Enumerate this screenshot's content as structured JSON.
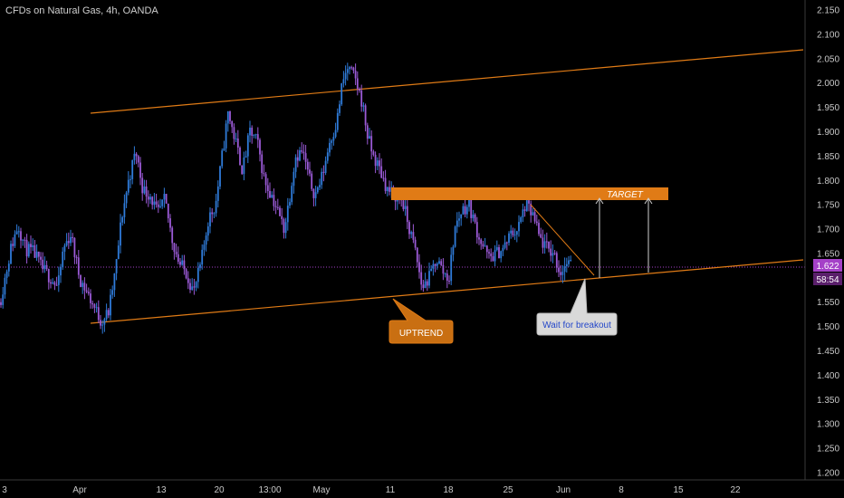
{
  "header": {
    "title": "CFDs on Natural Gas, 4h, OANDA"
  },
  "price_axis": {
    "ticks": [
      "2.150",
      "2.100",
      "2.050",
      "2.000",
      "1.950",
      "1.900",
      "1.850",
      "1.800",
      "1.750",
      "1.700",
      "1.650",
      "1.600",
      "1.550",
      "1.500",
      "1.450",
      "1.400",
      "1.350",
      "1.300",
      "1.250",
      "1.200"
    ],
    "last_price": "1.622",
    "countdown": "58:54"
  },
  "time_axis": {
    "ticks": [
      "3",
      "Apr",
      "13",
      "20",
      "13:00",
      "May",
      "11",
      "18",
      "25",
      "Jun",
      "8",
      "15",
      "22"
    ]
  },
  "annotations": {
    "target_label": "TARGET",
    "uptrend_label": "UPTREND",
    "breakout_label": "Wait for breakout"
  },
  "colors": {
    "background": "#000000",
    "candle_up": "#2f7bd9",
    "candle_down": "#9b5ad6",
    "channel": "#e07b16",
    "target_zone": "#e07b16",
    "last_price_tag": "#a541c8",
    "countdown_tag": "#5a1f6b",
    "callout_bg": "#d9d9d9",
    "callout_text": "#2447c9"
  },
  "chart_data": {
    "type": "candlestick",
    "symbol": "CFDs on Natural Gas",
    "timeframe": "4h",
    "source": "OANDA",
    "ylim": [
      1.19,
      2.16
    ],
    "last_price": 1.622,
    "target_zone": [
      1.765,
      1.78
    ],
    "upper_channel": [
      [
        "Apr 3",
        1.94
      ],
      [
        "Jun 24",
        2.07
      ]
    ],
    "lower_channel": [
      [
        "Apr 5",
        1.505
      ],
      [
        "Jun 24",
        1.63
      ]
    ],
    "path": [
      [
        0,
        1.55
      ],
      [
        12,
        1.66
      ],
      [
        20,
        1.71
      ],
      [
        28,
        1.66
      ],
      [
        38,
        1.65
      ],
      [
        46,
        1.62
      ],
      [
        56,
        1.6
      ],
      [
        64,
        1.58
      ],
      [
        70,
        1.66
      ],
      [
        78,
        1.69
      ],
      [
        88,
        1.6
      ],
      [
        96,
        1.57
      ],
      [
        104,
        1.54
      ],
      [
        112,
        1.51
      ],
      [
        120,
        1.53
      ],
      [
        128,
        1.62
      ],
      [
        134,
        1.72
      ],
      [
        142,
        1.8
      ],
      [
        150,
        1.86
      ],
      [
        158,
        1.78
      ],
      [
        166,
        1.77
      ],
      [
        174,
        1.73
      ],
      [
        182,
        1.76
      ],
      [
        190,
        1.68
      ],
      [
        198,
        1.63
      ],
      [
        206,
        1.61
      ],
      [
        214,
        1.57
      ],
      [
        222,
        1.63
      ],
      [
        230,
        1.72
      ],
      [
        238,
        1.75
      ],
      [
        246,
        1.86
      ],
      [
        252,
        1.94
      ],
      [
        260,
        1.88
      ],
      [
        268,
        1.82
      ],
      [
        276,
        1.9
      ],
      [
        284,
        1.88
      ],
      [
        292,
        1.8
      ],
      [
        300,
        1.77
      ],
      [
        308,
        1.73
      ],
      [
        314,
        1.7
      ],
      [
        320,
        1.77
      ],
      [
        326,
        1.85
      ],
      [
        334,
        1.86
      ],
      [
        342,
        1.8
      ],
      [
        348,
        1.77
      ],
      [
        356,
        1.81
      ],
      [
        364,
        1.88
      ],
      [
        372,
        1.92
      ],
      [
        378,
        2.0
      ],
      [
        384,
        2.03
      ],
      [
        392,
        2.01
      ],
      [
        400,
        1.96
      ],
      [
        406,
        1.89
      ],
      [
        412,
        1.85
      ],
      [
        420,
        1.82
      ],
      [
        428,
        1.78
      ],
      [
        436,
        1.77
      ],
      [
        444,
        1.76
      ],
      [
        452,
        1.7
      ],
      [
        458,
        1.66
      ],
      [
        466,
        1.58
      ],
      [
        474,
        1.6
      ],
      [
        482,
        1.64
      ],
      [
        490,
        1.61
      ],
      [
        496,
        1.6
      ],
      [
        502,
        1.7
      ],
      [
        510,
        1.74
      ],
      [
        518,
        1.75
      ],
      [
        526,
        1.7
      ],
      [
        532,
        1.67
      ],
      [
        540,
        1.64
      ],
      [
        548,
        1.65
      ],
      [
        556,
        1.66
      ],
      [
        564,
        1.69
      ],
      [
        572,
        1.7
      ],
      [
        580,
        1.75
      ],
      [
        588,
        1.73
      ],
      [
        596,
        1.68
      ],
      [
        604,
        1.66
      ],
      [
        612,
        1.65
      ],
      [
        618,
        1.61
      ],
      [
        626,
        1.63
      ],
      [
        632,
        1.62
      ]
    ]
  }
}
